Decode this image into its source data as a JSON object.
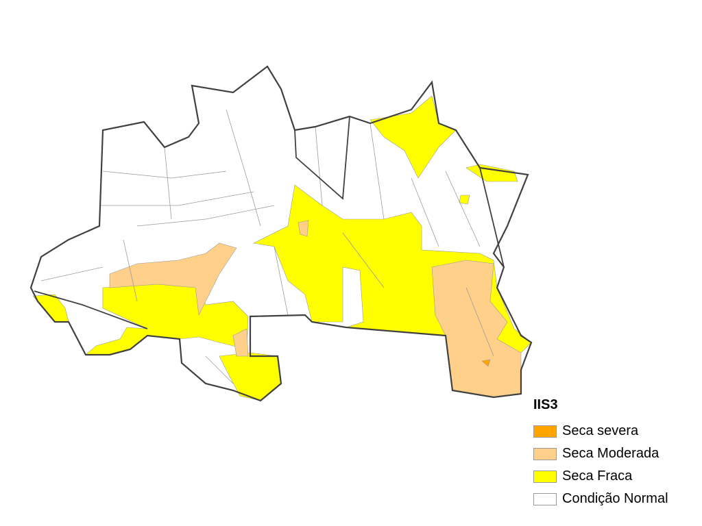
{
  "legend": {
    "title": "IIS3",
    "items": [
      {
        "label": "Seca severa",
        "color": "#FFA500"
      },
      {
        "label": "Seca Moderada",
        "color": "#FFD08A"
      },
      {
        "label": "Seca Fraca",
        "color": "#FFFF00"
      },
      {
        "label": "Condição Normal",
        "color": "#FFFFFF"
      }
    ]
  },
  "colors": {
    "border": "#404040",
    "municipal_border": "#9a9a9a"
  }
}
